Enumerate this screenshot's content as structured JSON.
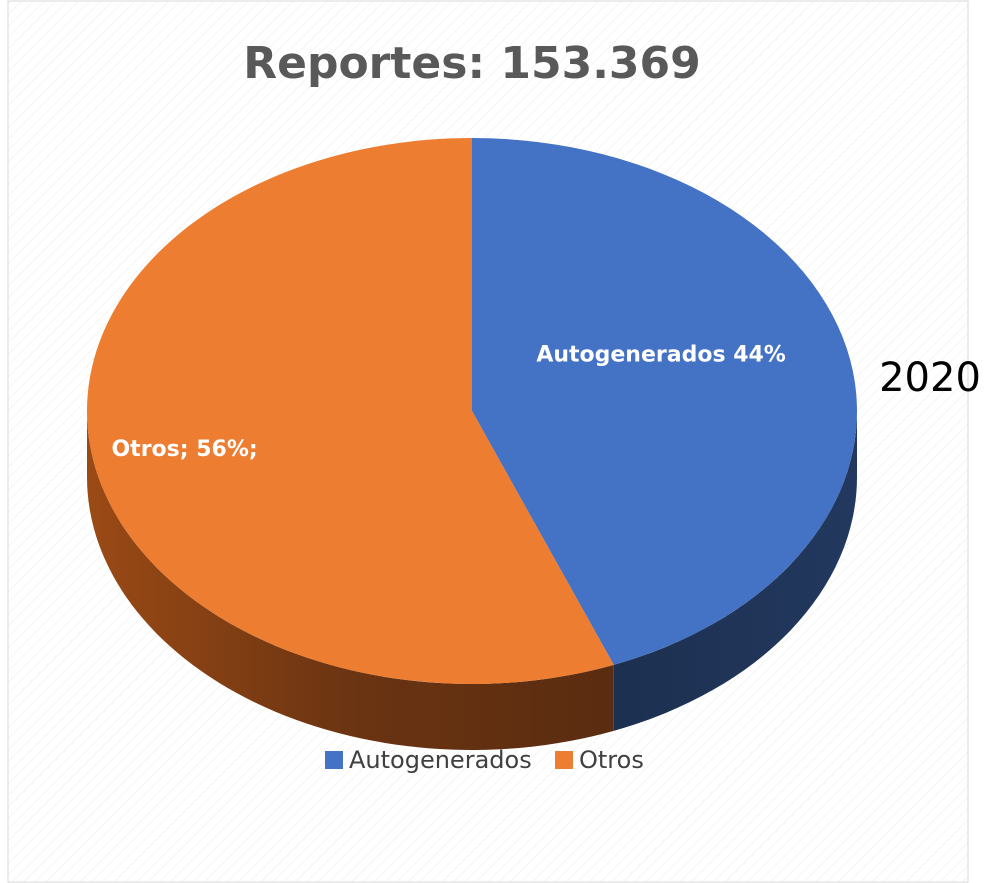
{
  "chart_data": {
    "type": "pie3d",
    "title": "Reportes: 153.369",
    "categories": [
      "Autogenerados",
      "Otros"
    ],
    "series": [
      {
        "name": "2020",
        "colors": [
          "#4472c4",
          "#ed7d31"
        ],
        "values": [
          44,
          56
        ],
        "value_labels": [
          "Autogenerados 44%",
          "Otros; 56%;"
        ]
      }
    ],
    "legend": "bottom"
  }
}
